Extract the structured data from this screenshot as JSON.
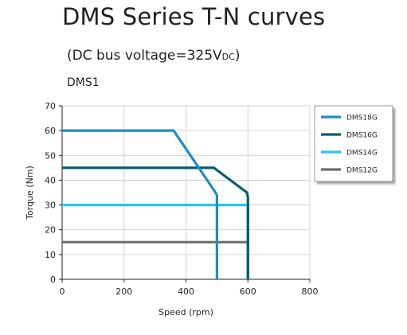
{
  "header": {
    "title": "DMS Series T-N curves",
    "subtitle_prefix": "(DC bus voltage=325V",
    "subtitle_sub": "DC",
    "subtitle_suffix": ")",
    "model": "DMS1"
  },
  "chart_data": {
    "type": "line",
    "xlabel": "Speed (rpm)",
    "ylabel": "Torque (Nm)",
    "xlim": [
      0,
      800
    ],
    "ylim": [
      0,
      70
    ],
    "x_ticks": [
      0,
      200,
      400,
      600,
      800
    ],
    "y_ticks": [
      0,
      10,
      20,
      30,
      40,
      50,
      60,
      70
    ],
    "grid": true,
    "legend_position": "top-right",
    "series": [
      {
        "name": "DMS18G",
        "color": "#1d8fc0",
        "points": [
          [
            0,
            60
          ],
          [
            360,
            60
          ],
          [
            490,
            36
          ],
          [
            500,
            34
          ],
          [
            500,
            0
          ]
        ]
      },
      {
        "name": "DMS16G",
        "color": "#0a5a6e",
        "points": [
          [
            0,
            45
          ],
          [
            490,
            45
          ],
          [
            597,
            35
          ],
          [
            600,
            33
          ],
          [
            600,
            0
          ]
        ]
      },
      {
        "name": "DMS14G",
        "color": "#29c4f0",
        "points": [
          [
            0,
            30
          ],
          [
            600,
            30
          ],
          [
            600,
            0
          ]
        ]
      },
      {
        "name": "DMS12G",
        "color": "#6d6e71",
        "points": [
          [
            0,
            15
          ],
          [
            600,
            15
          ],
          [
            600,
            0
          ]
        ]
      }
    ]
  }
}
